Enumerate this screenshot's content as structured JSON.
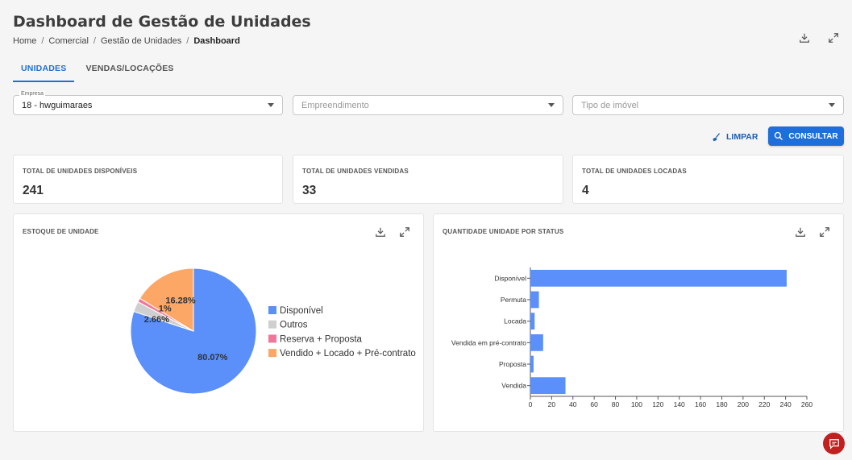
{
  "header": {
    "title": "Dashboard de Gestão de Unidades",
    "breadcrumb": [
      "Home",
      "Comercial",
      "Gestão de Unidades",
      "Dashboard"
    ]
  },
  "tabs": [
    {
      "label": "UNIDADES",
      "active": true
    },
    {
      "label": "VENDAS/LOCAÇÕES",
      "active": false
    }
  ],
  "filters": {
    "empresa": {
      "label": "Empresa",
      "value": "18 - hwguimaraes"
    },
    "empreendimento": {
      "placeholder": "Empreendimento"
    },
    "tipo_imovel": {
      "placeholder": "Tipo de imóvel"
    }
  },
  "actions": {
    "limpar": "LIMPAR",
    "consultar": "CONSULTAR"
  },
  "kpis": [
    {
      "label": "TOTAL DE UNIDADES DISPONÍVEIS",
      "value": "241"
    },
    {
      "label": "TOTAL DE UNIDADES VENDIDAS",
      "value": "33"
    },
    {
      "label": "TOTAL DE UNIDADES LOCADAS",
      "value": "4"
    }
  ],
  "colors": {
    "accent": "#1e6fd9",
    "chart_blue": "#5b8ff9",
    "fab": "#c21f1f"
  },
  "chart_data": [
    {
      "type": "pie",
      "title": "ESTOQUE DE UNIDADE",
      "legend_position": "right",
      "slices": [
        {
          "label": "Disponível",
          "value": 80.07,
          "display": "80.07%",
          "color": "#5b8ff9"
        },
        {
          "label": "Outros",
          "value": 2.66,
          "display": "2.66%",
          "color": "#cfcfcf"
        },
        {
          "label": "Reserva + Proposta",
          "value": 1,
          "display": "1%",
          "color": "#f0779a"
        },
        {
          "label": "Vendido + Locado + Pré-contrato",
          "value": 16.28,
          "display": "16.28%",
          "color": "#fca765"
        }
      ]
    },
    {
      "type": "bar",
      "orientation": "horizontal",
      "title": "QUANTIDADE UNIDADE POR STATUS",
      "categories": [
        "Disponível",
        "Permuta",
        "Locada",
        "Vendida em pré-contrato",
        "Proposta",
        "Vendida"
      ],
      "values": [
        241,
        8,
        4,
        12,
        3,
        33
      ],
      "xlim": [
        0,
        260
      ],
      "xticks": [
        0,
        20,
        40,
        60,
        80,
        100,
        120,
        140,
        160,
        180,
        200,
        220,
        240,
        260
      ],
      "grid": false,
      "color": "#5b8ff9"
    }
  ]
}
